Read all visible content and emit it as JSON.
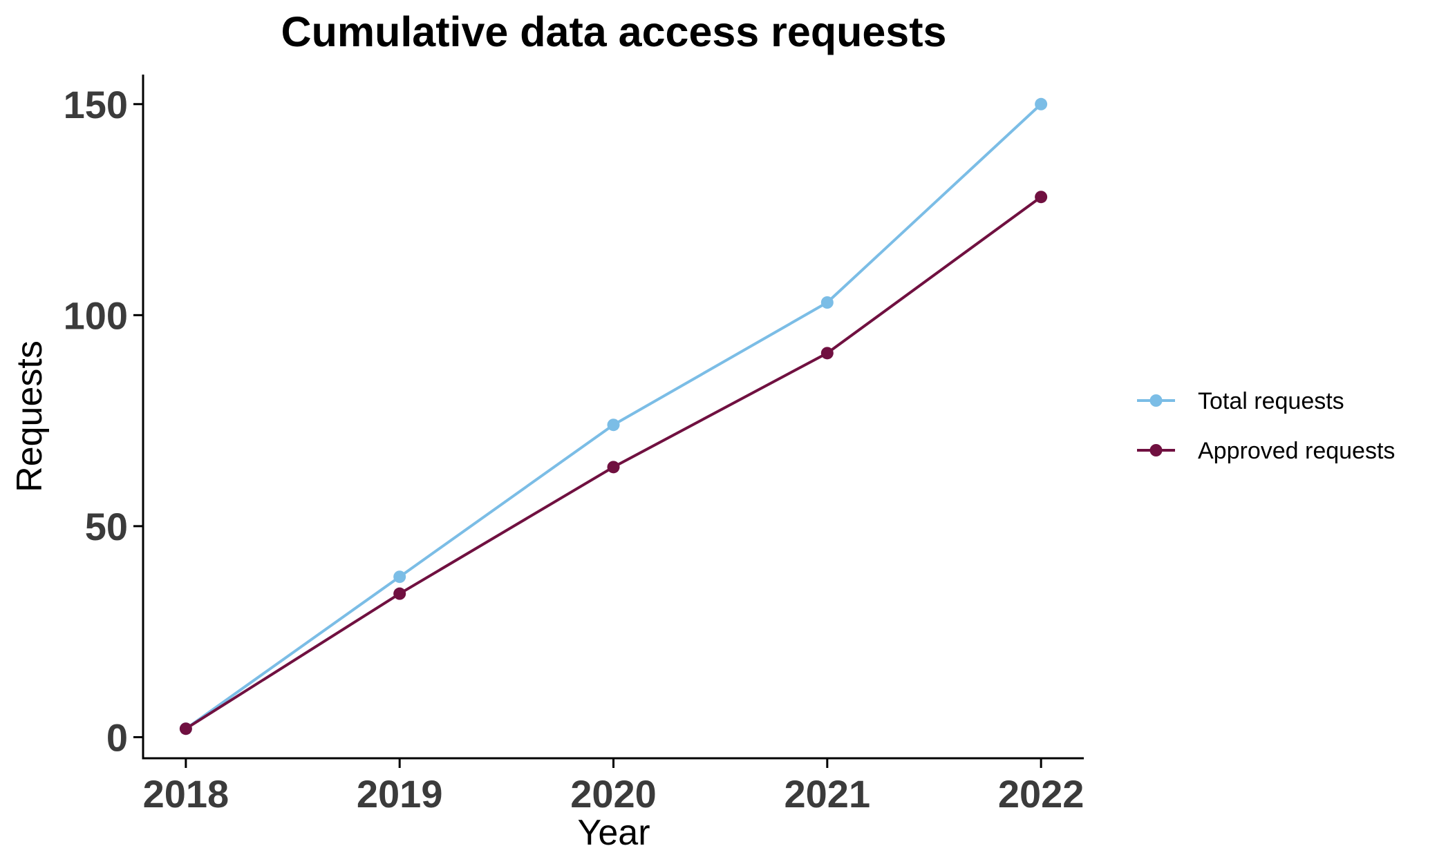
{
  "chart_data": {
    "type": "line",
    "title": "Cumulative data access requests",
    "xlabel": "Year",
    "ylabel": "Requests",
    "x": [
      2018,
      2019,
      2020,
      2021,
      2022
    ],
    "x_tick_labels": [
      "2018",
      "2019",
      "2020",
      "2021",
      "2022"
    ],
    "xlim": [
      2017.8,
      2022.2
    ],
    "ylim": [
      -5,
      157
    ],
    "y_ticks": [
      0,
      50,
      100,
      150
    ],
    "y_tick_labels": [
      "0",
      "50",
      "100",
      "150"
    ],
    "grid": false,
    "legend_position": "right",
    "series": [
      {
        "name": "Total requests",
        "color": "#7bbde6",
        "values": [
          2,
          38,
          74,
          103,
          150
        ]
      },
      {
        "name": "Approved requests",
        "color": "#701040",
        "values": [
          2,
          34,
          64,
          91,
          128
        ]
      }
    ]
  }
}
